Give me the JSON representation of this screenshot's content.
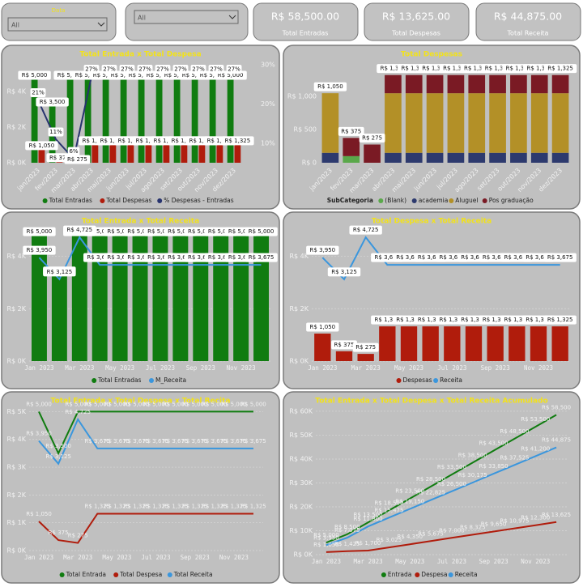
{
  "filters": [
    {
      "label": "Data",
      "value": "All"
    },
    {
      "value": "All"
    }
  ],
  "cards": [
    {
      "value": "R$ 58,500.00",
      "label": "Total Entradas"
    },
    {
      "value": "R$ 13,625.00",
      "label": "Total Despesas"
    },
    {
      "value": "R$ 44,875.00",
      "label": "Total Receita"
    }
  ],
  "chart_data": [
    {
      "type": "bar",
      "title": "Total Entrada x Total Despesa",
      "categories": [
        "jan/2023",
        "fev/2023",
        "mar/2023",
        "abr/2023",
        "mai/2023",
        "jun/2023",
        "jul/2023",
        "ago/2023",
        "set/2023",
        "out/2023",
        "nov/2023",
        "dez/2023"
      ],
      "ylim": [
        0,
        5500
      ],
      "yticks": [
        {
          "value": 0,
          "label": "R$ 0K"
        },
        {
          "value": 2000,
          "label": "R$ 2K"
        },
        {
          "value": 4000,
          "label": "R$ 4K"
        }
      ],
      "y2lim": [
        5,
        30
      ],
      "y2ticks": [
        {
          "value": 10,
          "label": "10%"
        },
        {
          "value": 20,
          "label": "20%"
        },
        {
          "value": 30,
          "label": "30%"
        }
      ],
      "grid": false,
      "value_label_style": "box",
      "series": [
        {
          "name": "Total Entradas",
          "color": "#107c10",
          "values": [
            5000,
            3500,
            5000,
            5000,
            5000,
            5000,
            5000,
            5000,
            5000,
            5000,
            5000,
            5000
          ],
          "value_labels": [
            "R$ 5,000",
            "R$ 3,500",
            "R$ 5,000",
            "R$ 5,000",
            "R$ 5,000",
            "R$ 5,000",
            "R$ 5,000",
            "R$ 5,000",
            "R$ 5,000",
            "R$ 5,000",
            "R$ 5,000",
            "R$ 5,000"
          ]
        },
        {
          "name": "Total Despesas",
          "color": "#b01c0c",
          "values": [
            1050,
            375,
            275,
            1325,
            1325,
            1325,
            1325,
            1325,
            1325,
            1325,
            1325,
            1325
          ],
          "value_labels": [
            "R$ 1,050",
            "R$ 375",
            "R$ 275",
            "R$ 1,325",
            "R$ 1,325",
            "R$ 1,325",
            "R$ 1,325",
            "R$ 1,325",
            "R$ 1,325",
            "R$ 1,325",
            "R$ 1,325",
            "R$ 1,325"
          ]
        },
        {
          "name": "% Despesas - Entradas",
          "color": "#27336e",
          "type": "line",
          "axis": "y2",
          "values": [
            21,
            11,
            6,
            27,
            27,
            27,
            27,
            27,
            27,
            27,
            27,
            27
          ],
          "value_labels": [
            "21%",
            "11%",
            "6%",
            "27%",
            "27%",
            "27%",
            "27%",
            "27%",
            "27%",
            "27%",
            "27%",
            "27%"
          ]
        }
      ]
    },
    {
      "type": "bar",
      "title": "Total Despesas",
      "stacked": true,
      "legend_title": "SubCategoria",
      "categories": [
        "jan/2023",
        "fev/2023",
        "mar/2023",
        "abr/2023",
        "mai/2023",
        "jun/2023",
        "jul/2023",
        "ago/2023",
        "set/2023",
        "out/2023",
        "nov/2023",
        "dez/2023"
      ],
      "ylim": [
        0,
        1480
      ],
      "yticks": [
        {
          "value": 0,
          "label": "R$ 0"
        },
        {
          "value": 500,
          "label": "R$ 500"
        },
        {
          "value": 1000,
          "label": "R$ 1,000"
        }
      ],
      "grid": false,
      "value_label_style": "box",
      "series": [
        {
          "name": "(Blank)",
          "color": "#5aa84a",
          "values": [
            null,
            100,
            null,
            null,
            null,
            null,
            null,
            null,
            null,
            null,
            null,
            null
          ]
        },
        {
          "name": "academia",
          "color": "#2d3a6e",
          "values": [
            150,
            null,
            null,
            150,
            150,
            150,
            150,
            150,
            150,
            150,
            150,
            150
          ]
        },
        {
          "name": "Aluguel",
          "color": "#b39027",
          "values": [
            900,
            null,
            null,
            900,
            900,
            900,
            900,
            900,
            900,
            900,
            900,
            900
          ]
        },
        {
          "name": "Pos graduação",
          "color": "#7a1a24",
          "values": [
            null,
            275,
            275,
            275,
            275,
            275,
            275,
            275,
            275,
            275,
            275,
            275
          ]
        }
      ],
      "totals": [
        1050,
        375,
        275,
        1325,
        1325,
        1325,
        1325,
        1325,
        1325,
        1325,
        1325,
        1325
      ],
      "total_labels": [
        "R$ 1,050",
        "R$ 375",
        "R$ 275",
        "R$ 1,325",
        "R$ 1,325",
        "R$ 1,325",
        "R$ 1,325",
        "R$ 1,325",
        "R$ 1,325",
        "R$ 1,325",
        "R$ 1,325",
        "R$ 1,325"
      ]
    },
    {
      "type": "bar",
      "title": "Total Entrada x Total Receita",
      "categories": [
        "Jan 2023",
        null,
        "Mar 2023",
        null,
        "May 2023",
        null,
        "Jul 2023",
        null,
        "Sep 2023",
        null,
        "Nov 2023",
        null
      ],
      "ylim": [
        0,
        5500
      ],
      "yticks": [
        {
          "value": 0,
          "label": "R$ 0K"
        },
        {
          "value": 2000,
          "label": "R$ 2K"
        },
        {
          "value": 4000,
          "label": "R$ 4K"
        }
      ],
      "grid": true,
      "value_label_style": "box",
      "series": [
        {
          "name": "Total Entradas",
          "color": "#107c10",
          "values": [
            5000,
            3500,
            5000,
            5000,
            5000,
            5000,
            5000,
            5000,
            5000,
            5000,
            5000,
            5000
          ],
          "value_labels": [
            "R$ 5,000",
            "R$ 3,500",
            "R$ 5,000",
            "R$ 5,000",
            "R$ 5,000",
            "R$ 5,000",
            "R$ 5,000",
            "R$ 5,000",
            "R$ 5,000",
            "R$ 5,000",
            "R$ 5,000",
            "R$ 5,000"
          ]
        },
        {
          "name": "M_Receita",
          "color": "#3a96dd",
          "type": "line",
          "values": [
            3950,
            3125,
            4725,
            3675,
            3675,
            3675,
            3675,
            3675,
            3675,
            3675,
            3675,
            3675
          ],
          "value_labels": [
            "R$ 3,950",
            "R$ 3,125",
            "R$ 4,725",
            "R$ 3,675",
            "R$ 3,675",
            "R$ 3,675",
            "R$ 3,675",
            "R$ 3,675",
            "R$ 3,675",
            "R$ 3,675",
            "R$ 3,675",
            "R$ 3,675"
          ]
        }
      ]
    },
    {
      "type": "bar",
      "title": "Total Despesa x Total Receita",
      "categories": [
        "Jan 2023",
        null,
        "Mar 2023",
        null,
        "May 2023",
        null,
        "Jul 2023",
        null,
        "Sep 2023",
        null,
        "Nov 2023",
        null
      ],
      "ylim": [
        0,
        5500
      ],
      "yticks": [
        {
          "value": 0,
          "label": "R$ 0K"
        },
        {
          "value": 2000,
          "label": "R$ 2K"
        },
        {
          "value": 4000,
          "label": "R$ 4K"
        }
      ],
      "grid": true,
      "value_label_style": "box",
      "series": [
        {
          "name": "Despesas",
          "color": "#b01c0c",
          "values": [
            1050,
            375,
            275,
            1325,
            1325,
            1325,
            1325,
            1325,
            1325,
            1325,
            1325,
            1325
          ],
          "value_labels": [
            "R$ 1,050",
            "R$ 375",
            "R$ 275",
            "R$ 1,325",
            "R$ 1,325",
            "R$ 1,325",
            "R$ 1,325",
            "R$ 1,325",
            "R$ 1,325",
            "R$ 1,325",
            "R$ 1,325",
            "R$ 1,325"
          ]
        },
        {
          "name": "Receita",
          "color": "#3a96dd",
          "type": "line",
          "values": [
            3950,
            3125,
            4725,
            3675,
            3675,
            3675,
            3675,
            3675,
            3675,
            3675,
            3675,
            3675
          ],
          "value_labels": [
            "R$ 3,950",
            "R$ 3,125",
            "R$ 4,725",
            "R$ 3,675",
            "R$ 3,675",
            "R$ 3,675",
            "R$ 3,675",
            "R$ 3,675",
            "R$ 3,675",
            "R$ 3,675",
            "R$ 3,675",
            "R$ 3,675"
          ]
        }
      ]
    },
    {
      "type": "line",
      "title": "Total Entrada x Total Despesa x Total Recita",
      "categories": [
        "Jan 2023",
        null,
        "Mar 2023",
        null,
        "May 2023",
        null,
        "Jul 2023",
        null,
        "Sep 2023",
        null,
        "Nov 2023",
        null
      ],
      "ylim": [
        0,
        5100
      ],
      "yticks": [
        {
          "value": 0,
          "label": "R$ 0K"
        },
        {
          "value": 1000,
          "label": "R$ 1K"
        },
        {
          "value": 2000,
          "label": "R$ 2K"
        },
        {
          "value": 3000,
          "label": "R$ 3K"
        },
        {
          "value": 4000,
          "label": "R$ 4K"
        },
        {
          "value": 5000,
          "label": "R$ 5K"
        }
      ],
      "grid": true,
      "value_label_style": "plain",
      "series": [
        {
          "name": "Total Entrada",
          "color": "#107c10",
          "values": [
            5000,
            3500,
            5000,
            5000,
            5000,
            5000,
            5000,
            5000,
            5000,
            5000,
            5000,
            5000
          ],
          "value_labels": [
            "R$ 5,000",
            "R$ 3,500",
            "R$ 5,000",
            "R$ 5,000",
            "R$ 5,000",
            "R$ 5,000",
            "R$ 5,000",
            "R$ 5,000",
            "R$ 5,000",
            "R$ 5,000",
            "R$ 5,000",
            "R$ 5,000"
          ]
        },
        {
          "name": "Total Despesa",
          "color": "#b01c0c",
          "values": [
            1050,
            375,
            275,
            1325,
            1325,
            1325,
            1325,
            1325,
            1325,
            1325,
            1325,
            1325
          ],
          "value_labels": [
            "R$ 1,050",
            "R$ 375",
            "R$ 275",
            "R$ 1,325",
            "R$ 1,325",
            "R$ 1,325",
            "R$ 1,325",
            "R$ 1,325",
            "R$ 1,325",
            "R$ 1,325",
            "R$ 1,325",
            "R$ 1,325"
          ]
        },
        {
          "name": "Total Receita",
          "color": "#3a96dd",
          "values": [
            3950,
            3125,
            4725,
            3675,
            3675,
            3675,
            3675,
            3675,
            3675,
            3675,
            3675,
            3675
          ],
          "value_labels": [
            "R$ 3,950",
            "R$ 3,125",
            "R$ 4,725",
            "R$ 3,675",
            "R$ 3,675",
            "R$ 3,675",
            "R$ 3,675",
            "R$ 3,675",
            "R$ 3,675",
            "R$ 3,675",
            "R$ 3,675",
            "R$ 3,675"
          ]
        }
      ]
    },
    {
      "type": "line",
      "title": "Total Entrada x Total Despesa x Total Receita Acumulado",
      "categories": [
        "Jan 2023",
        null,
        "Mar 2023",
        null,
        "May 2023",
        null,
        "Jul 2023",
        null,
        "Sep 2023",
        null,
        "Nov 2023",
        null
      ],
      "ylim": [
        0,
        61000
      ],
      "yticks": [
        {
          "value": 0,
          "label": "R$ 0K"
        },
        {
          "value": 10000,
          "label": "R$ 10K"
        },
        {
          "value": 20000,
          "label": "R$ 20K"
        },
        {
          "value": 30000,
          "label": "R$ 30K"
        },
        {
          "value": 40000,
          "label": "R$ 40K"
        },
        {
          "value": 50000,
          "label": "R$ 50K"
        },
        {
          "value": 60000,
          "label": "R$ 60K"
        }
      ],
      "grid": true,
      "value_label_style": "plain",
      "series": [
        {
          "name": "Entrada",
          "color": "#107c10",
          "values": [
            5000,
            8500,
            13500,
            18500,
            23500,
            28500,
            33500,
            38500,
            43500,
            48500,
            53500,
            58500
          ],
          "value_labels": [
            "R$ 5,000",
            "R$ 8,500",
            "R$ 13,500",
            "R$ 18,500",
            "R$ 23,500",
            "R$ 28,500",
            "R$ 33,500",
            "R$ 38,500",
            "R$ 43,500",
            "R$ 48,500",
            "R$ 53,500",
            "R$ 58,500"
          ]
        },
        {
          "name": "Despesa",
          "color": "#b01c0c",
          "values": [
            1050,
            1425,
            1700,
            3025,
            4350,
            5675,
            7000,
            8325,
            9650,
            10975,
            12300,
            13625
          ],
          "value_labels": [
            "R$ 1,050",
            "R$ 1,425",
            "R$ 1,700",
            "R$ 3,025",
            "R$ 4,350",
            "R$ 5,675",
            "R$ 7,000",
            "R$ 8,325",
            "R$ 9,650",
            "R$ 10,975",
            "R$ 12,300",
            "R$ 13,625"
          ]
        },
        {
          "name": "Receita",
          "color": "#3a96dd",
          "values": [
            3950,
            7075,
            11800,
            15475,
            19150,
            22825,
            26500,
            30175,
            33850,
            37525,
            41200,
            44875
          ],
          "value_labels": [
            "R$ 3,950",
            "R$ 7,075",
            "R$ 11,800",
            "R$ 15,475",
            "R$ 19,150",
            "R$ 22,825",
            "R$ 26,500",
            "R$ 30,175",
            "R$ 33,850",
            "R$ 37,525",
            "R$ 41,200",
            "R$ 44,875"
          ]
        }
      ]
    }
  ]
}
